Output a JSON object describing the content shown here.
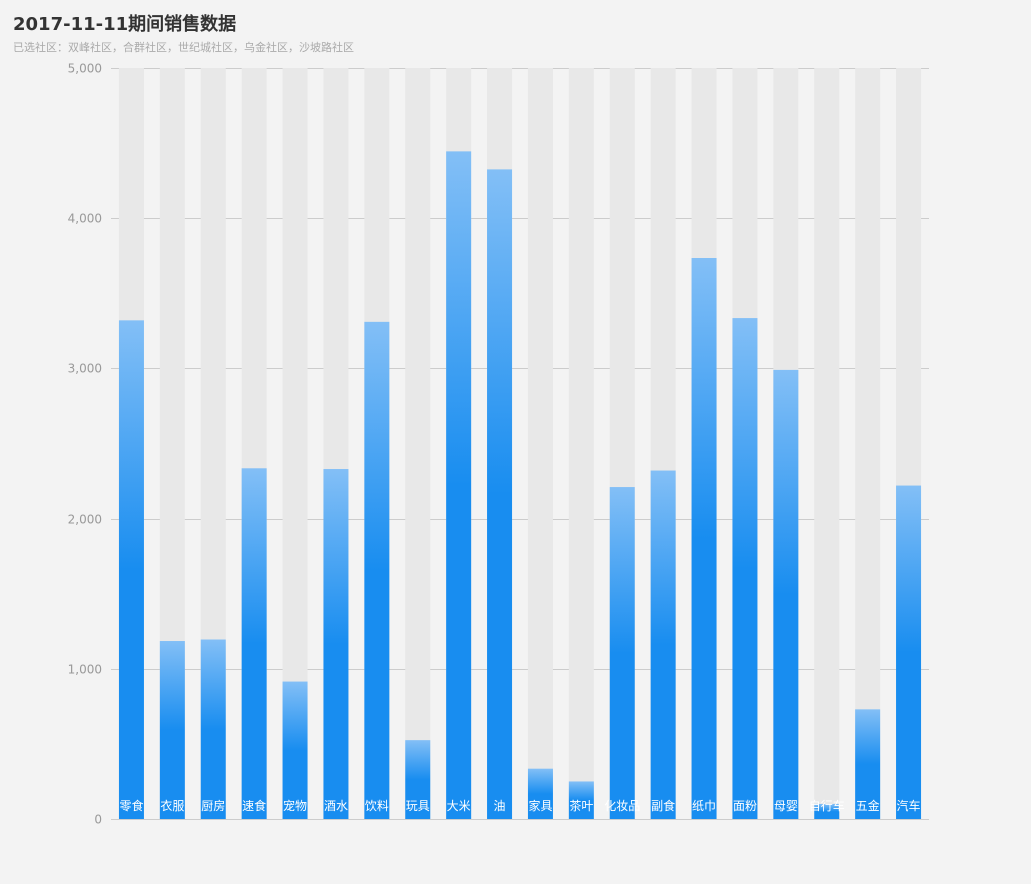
{
  "header": {
    "title": "2017-11-11期间销售数据",
    "subtitle": "已选社区：双峰社区，合群社区，世纪城社区，乌金社区，沙坡路社区"
  },
  "chart_data": {
    "type": "bar",
    "title": "2017-11-11期间销售数据",
    "subtitle": "已选社区：双峰社区，合群社区，世纪城社区，乌金社区，沙坡路社区",
    "categories": [
      "零食",
      "衣服",
      "厨房",
      "速食",
      "宠物",
      "酒水",
      "饮料",
      "玩具",
      "大米",
      "油",
      "家具",
      "茶叶",
      "化妆品",
      "副食",
      "纸巾",
      "面粉",
      "母婴",
      "自行车",
      "五金",
      "汽车"
    ],
    "values": [
      3320,
      1185,
      1195,
      2335,
      915,
      2330,
      3310,
      525,
      4445,
      4325,
      335,
      250,
      2210,
      2320,
      3735,
      3335,
      2990,
      100,
      730,
      2220
    ],
    "max_background_value": 5000,
    "ylim": [
      0,
      5000
    ],
    "yticks": [
      0,
      1000,
      2000,
      3000,
      4000,
      5000
    ],
    "ytick_labels": [
      "0",
      "1,000",
      "2,000",
      "3,000",
      "4,000",
      "5,000"
    ],
    "xlabel": "",
    "ylabel": "",
    "grid": true,
    "colors": {
      "bar_top": "#83bff6",
      "bar_mid": "#188df0",
      "bar_bottom": "#188df0",
      "shadow": "#e8e8e8",
      "grid": "#cccccc",
      "label": "#ffffff"
    }
  }
}
